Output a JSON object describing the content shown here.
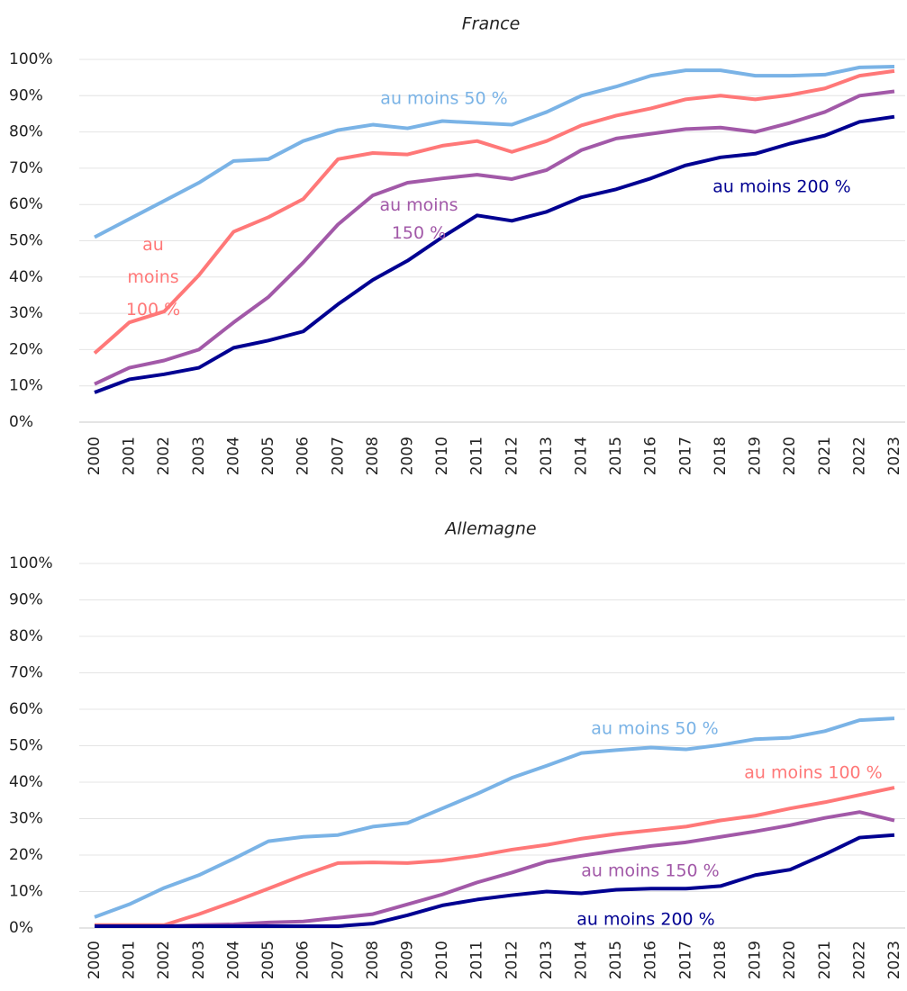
{
  "chart_data": [
    {
      "type": "line",
      "title": "France",
      "x": [
        "2000",
        "2001",
        "2002",
        "2003",
        "2004",
        "2005",
        "2006",
        "2007",
        "2008",
        "2009",
        "2010",
        "2011",
        "2012",
        "2013",
        "2014",
        "2015",
        "2016",
        "2017",
        "2018",
        "2019",
        "2020",
        "2021",
        "2022",
        "2023"
      ],
      "ylim": [
        0,
        100
      ],
      "yticks": [
        {
          "value": 0,
          "label": "0%"
        },
        {
          "value": 10,
          "label": "10%"
        },
        {
          "value": 20,
          "label": "20%"
        },
        {
          "value": 30,
          "label": "30%"
        },
        {
          "value": 40,
          "label": "40%"
        },
        {
          "value": 50,
          "label": "50%"
        },
        {
          "value": 60,
          "label": "60%"
        },
        {
          "value": 70,
          "label": "70%"
        },
        {
          "value": 80,
          "label": "80%"
        },
        {
          "value": 90,
          "label": "90%"
        },
        {
          "value": 100,
          "label": "100%"
        }
      ],
      "grid": true,
      "series": [
        {
          "name": "au moins 50 %",
          "color": "#7ab3e6",
          "values": [
            51,
            56,
            61,
            66,
            72,
            72.5,
            77.5,
            80.5,
            82,
            81,
            83,
            82.5,
            82,
            85.5,
            90,
            92.5,
            95.5,
            97,
            97,
            95.5,
            95.5,
            95.8,
            97.8,
            98
          ]
        },
        {
          "name": "au moins 100 %",
          "color": "#ff7878",
          "values": [
            19,
            27.5,
            30.5,
            40.5,
            52.5,
            56.5,
            61.5,
            72.5,
            74.2,
            73.8,
            76.2,
            77.5,
            74.5,
            77.5,
            81.8,
            84.5,
            86.5,
            89,
            90,
            89,
            90.2,
            92,
            95.5,
            96.8
          ]
        },
        {
          "name": "au moins 150 %",
          "color": "#a259a8",
          "values": [
            10.5,
            15,
            17,
            20,
            27.5,
            34.5,
            44,
            54.5,
            62.5,
            66,
            67.2,
            68.2,
            67,
            69.5,
            75,
            78.2,
            79.5,
            80.8,
            81.2,
            80,
            82.5,
            85.5,
            90,
            91.2
          ]
        },
        {
          "name": "au moins 200 %",
          "color": "#000091",
          "values": [
            8.2,
            11.8,
            13.2,
            15,
            20.5,
            22.5,
            25,
            32.5,
            39.2,
            44.5,
            51,
            57,
            55.5,
            58,
            62,
            64.2,
            67.2,
            70.8,
            73,
            74,
            76.8,
            79,
            82.8,
            84.2
          ]
        }
      ]
    },
    {
      "type": "line",
      "title": "Allemagne",
      "x": [
        "2000",
        "2001",
        "2002",
        "2003",
        "2004",
        "2005",
        "2006",
        "2007",
        "2008",
        "2009",
        "2010",
        "2011",
        "2012",
        "2013",
        "2014",
        "2015",
        "2016",
        "2017",
        "2018",
        "2019",
        "2020",
        "2021",
        "2022",
        "2023"
      ],
      "ylim": [
        0,
        100
      ],
      "yticks": [
        {
          "value": 0,
          "label": "0%"
        },
        {
          "value": 10,
          "label": "10%"
        },
        {
          "value": 20,
          "label": "20%"
        },
        {
          "value": 30,
          "label": "30%"
        },
        {
          "value": 40,
          "label": "40%"
        },
        {
          "value": 50,
          "label": "50%"
        },
        {
          "value": 60,
          "label": "60%"
        },
        {
          "value": 70,
          "label": "70%"
        },
        {
          "value": 80,
          "label": "80%"
        },
        {
          "value": 90,
          "label": "90%"
        },
        {
          "value": 100,
          "label": "100%"
        }
      ],
      "grid": true,
      "series": [
        {
          "name": "au moins 50 %",
          "color": "#7ab3e6",
          "values": [
            3,
            6.5,
            11,
            14.5,
            19,
            23.8,
            25,
            25.5,
            27.8,
            28.8,
            32.8,
            36.8,
            41.2,
            44.5,
            48,
            48.8,
            49.5,
            49,
            50.2,
            51.8,
            52.2,
            54,
            57,
            57.5
          ]
        },
        {
          "name": "au moins 100 %",
          "color": "#ff7878",
          "values": [
            0.8,
            0.8,
            0.8,
            3.8,
            7.2,
            10.8,
            14.5,
            17.8,
            18,
            17.8,
            18.5,
            19.8,
            21.5,
            22.8,
            24.5,
            25.8,
            26.8,
            27.8,
            29.5,
            30.8,
            32.8,
            34.5,
            36.5,
            38.5
          ]
        },
        {
          "name": "au moins 150 %",
          "color": "#a259a8",
          "values": [
            0.5,
            0.5,
            0.5,
            0.8,
            1,
            1.5,
            1.8,
            2.8,
            3.8,
            6.5,
            9.2,
            12.5,
            15.2,
            18.2,
            19.8,
            21.2,
            22.5,
            23.5,
            25,
            26.5,
            28.2,
            30.2,
            31.8,
            29.5
          ]
        },
        {
          "name": "au moins 200 %",
          "color": "#000091",
          "values": [
            0.5,
            0.5,
            0.5,
            0.5,
            0.5,
            0.5,
            0.5,
            0.5,
            1.2,
            3.5,
            6.2,
            7.8,
            9,
            10,
            9.5,
            10.5,
            10.8,
            10.8,
            11.5,
            14.5,
            16,
            20.2,
            24.8,
            25.5
          ]
        }
      ]
    }
  ]
}
